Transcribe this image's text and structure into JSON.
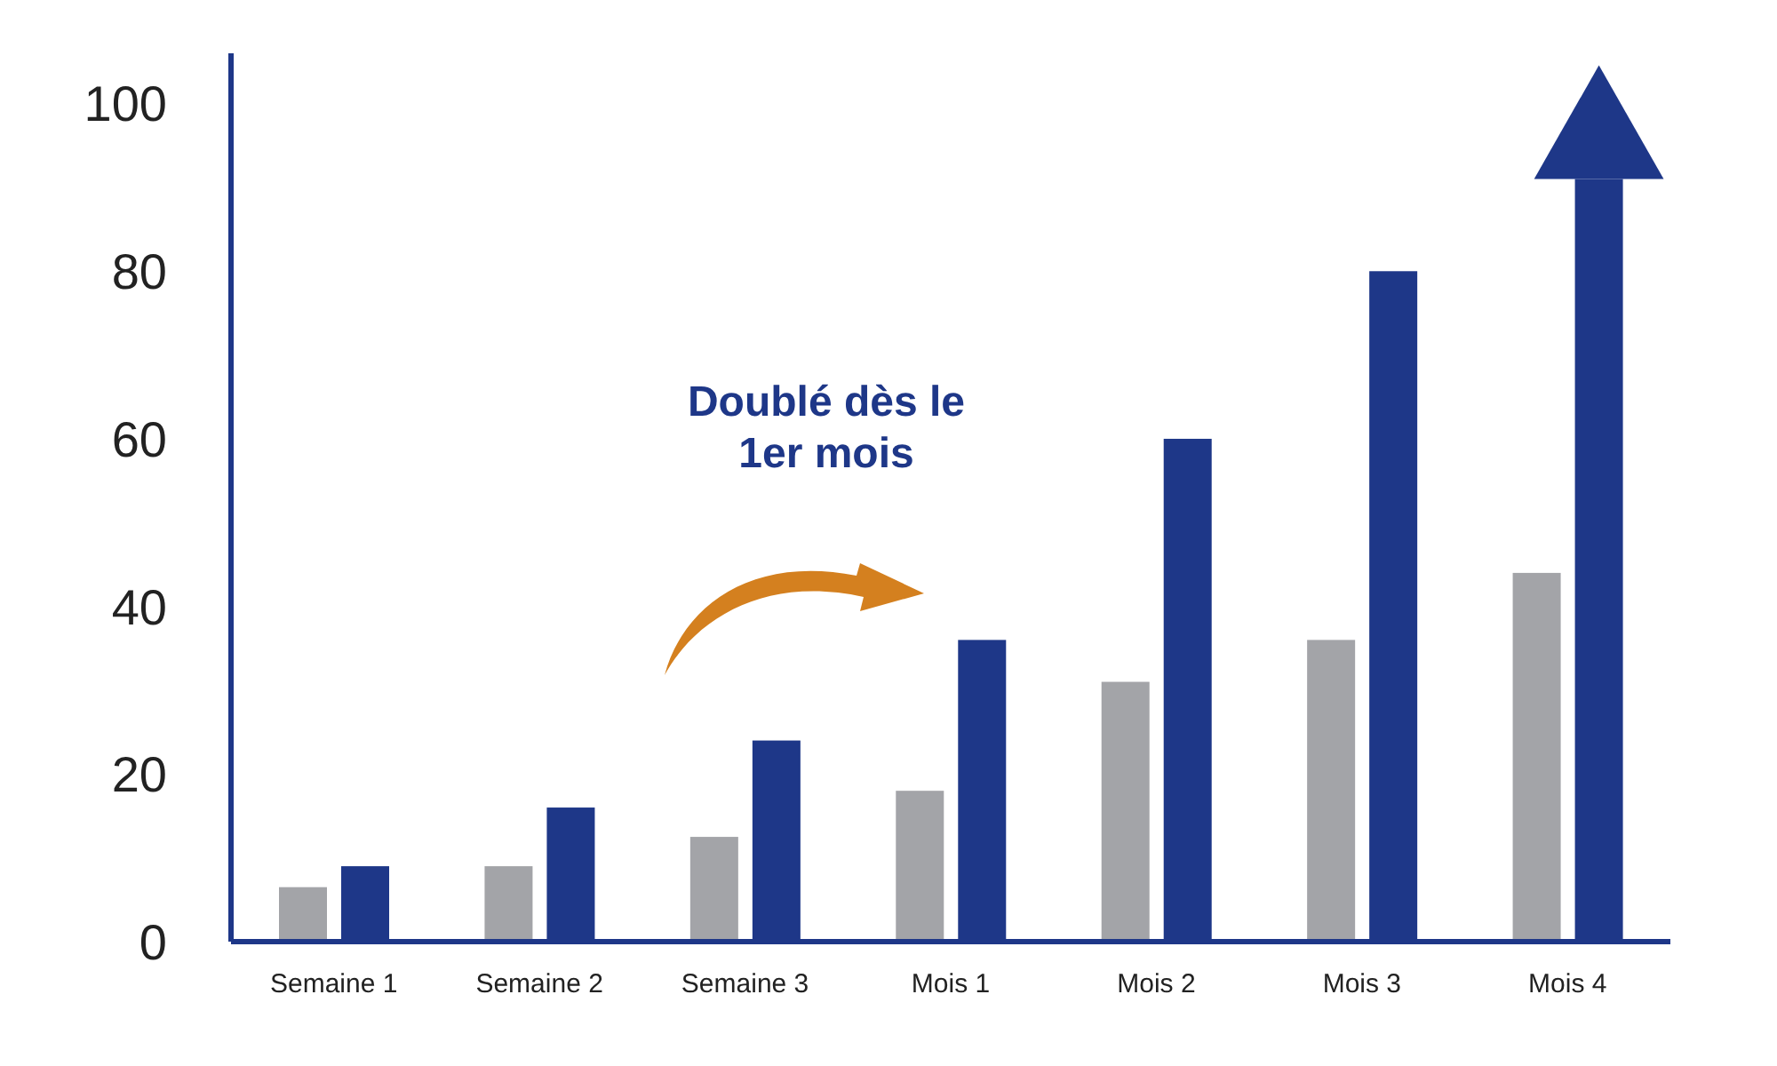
{
  "chart_data": {
    "type": "bar",
    "categories": [
      "Semaine 1",
      "Semaine 2",
      "Semaine 3",
      "Mois 1",
      "Mois 2",
      "Mois 3",
      "Mois 4"
    ],
    "series": [
      {
        "color": "#a3a4a8",
        "values": [
          6.5,
          9,
          12.5,
          18,
          31,
          36,
          44
        ]
      },
      {
        "color": "#1e3788",
        "values": [
          9,
          16,
          24,
          36,
          60,
          80,
          91
        ]
      }
    ],
    "ylim": [
      0,
      106
    ],
    "yticks": [
      0,
      20,
      40,
      60,
      80,
      100
    ],
    "grid": false,
    "legend": false,
    "annotations": [
      "Doublé dès le 1er mois"
    ]
  }
}
